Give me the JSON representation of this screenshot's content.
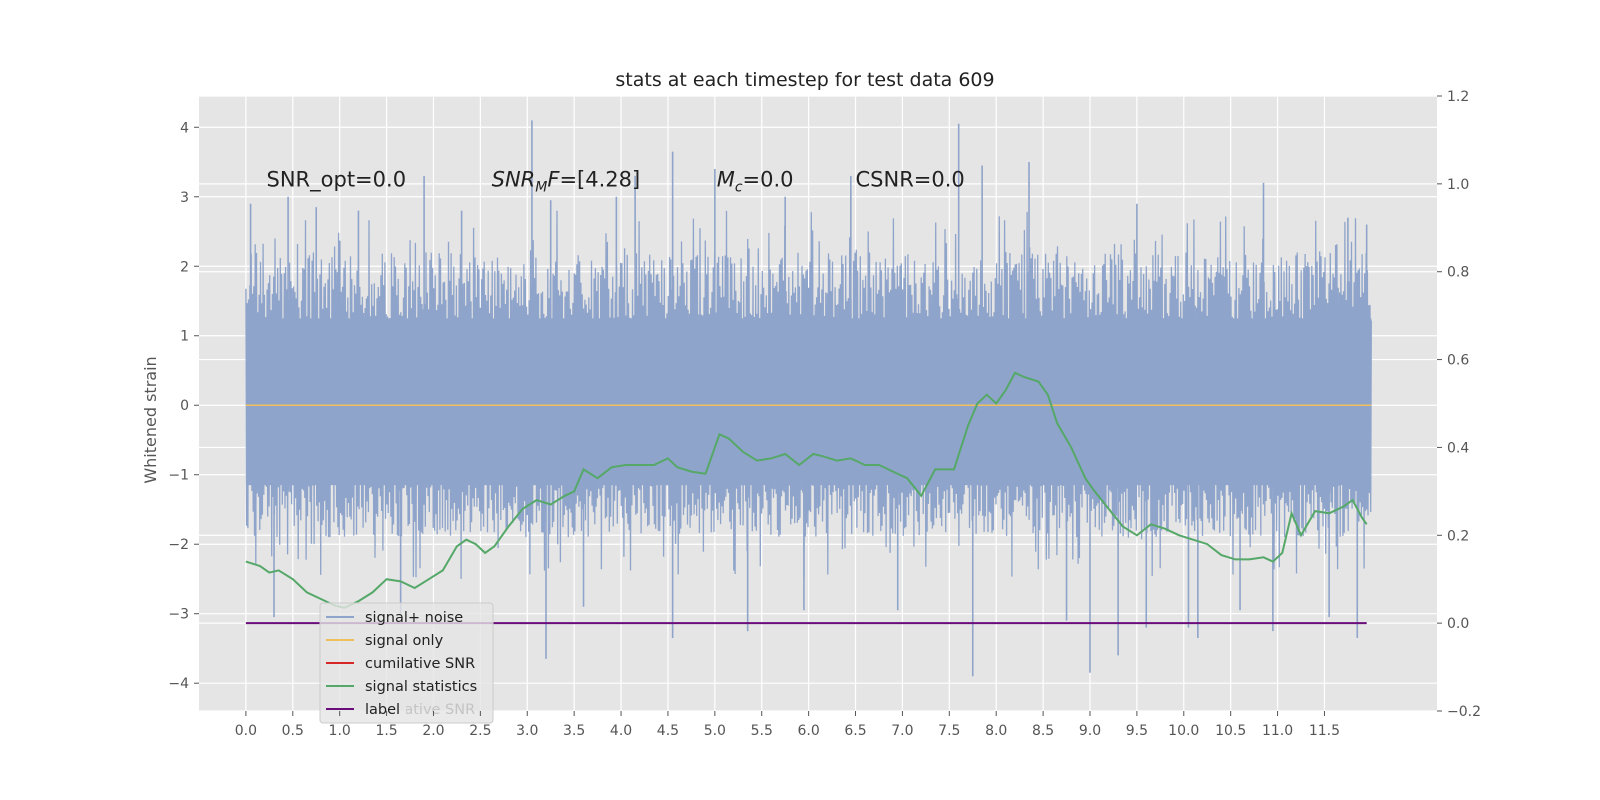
{
  "chart_data": {
    "type": "line",
    "title": "stats at each timestep for test data 609",
    "ylabel": "Whitened strain",
    "xlim": [
      -0.5,
      12.7
    ],
    "ylim": [
      -4.4,
      4.45
    ],
    "y2lim": [
      -0.2,
      1.2
    ],
    "grid": true,
    "legend_position": "lower-left",
    "x_ticks": [
      "0.0",
      "0.5",
      "1.0",
      "1.5",
      "2.0",
      "2.5",
      "3.0",
      "3.5",
      "4.0",
      "4.5",
      "5.0",
      "5.5",
      "6.0",
      "6.5",
      "7.0",
      "7.5",
      "8.0",
      "8.5",
      "9.0",
      "9.5",
      "10.0",
      "10.5",
      "11.0",
      "11.5"
    ],
    "y_ticks": [
      "4",
      "3",
      "2",
      "1",
      "0",
      "−1",
      "−2",
      "−3",
      "−4"
    ],
    "y2_ticks": [
      "1.2",
      "1.0",
      "0.8",
      "0.6",
      "0.4",
      "0.2",
      "0.0",
      "−0.2"
    ],
    "annotations": [
      {
        "id": "snr_opt",
        "text": "SNR_opt=0.0"
      },
      {
        "id": "snr_mf",
        "base": "SNR",
        "sub": "M",
        "rest": "F=[4.28]"
      },
      {
        "id": "mc",
        "base": "M",
        "sub": "c",
        "rest": "=0.0"
      },
      {
        "id": "csnr",
        "text": "CSNR=0.0"
      }
    ],
    "legend": [
      {
        "label": "signal+ noise",
        "color": "#8fa4ca"
      },
      {
        "label": "signal only",
        "color": "#f0c15a"
      },
      {
        "label": "cumilative SNR",
        "color": "#d62728"
      },
      {
        "label": "signal statistics",
        "color": "#55a868"
      },
      {
        "label": "label",
        "color": "#6a0d7a"
      }
    ],
    "occluded_legend_label": "cumilative SNR",
    "series": [
      {
        "name": "signal+ noise",
        "axis": "left",
        "color": "#8fa4ca",
        "x_range": [
          0.0,
          12.0
        ],
        "typical_envelope": [
          -1.9,
          2.2
        ],
        "spike_peaks": [
          {
            "x": 0.05,
            "y": 2.9
          },
          {
            "x": 0.45,
            "y": 3.0
          },
          {
            "x": 0.75,
            "y": 2.85
          },
          {
            "x": 1.2,
            "y": 2.8
          },
          {
            "x": 1.9,
            "y": 3.3
          },
          {
            "x": 2.3,
            "y": 2.8
          },
          {
            "x": 3.05,
            "y": 4.1
          },
          {
            "x": 3.25,
            "y": 2.95
          },
          {
            "x": 3.95,
            "y": 3.0
          },
          {
            "x": 4.15,
            "y": 3.3
          },
          {
            "x": 4.55,
            "y": 3.65
          },
          {
            "x": 5.0,
            "y": 3.4
          },
          {
            "x": 5.75,
            "y": 3.0
          },
          {
            "x": 6.45,
            "y": 3.3
          },
          {
            "x": 7.6,
            "y": 4.05
          },
          {
            "x": 7.85,
            "y": 3.45
          },
          {
            "x": 8.35,
            "y": 3.5
          },
          {
            "x": 9.5,
            "y": 2.9
          },
          {
            "x": 10.85,
            "y": 3.2
          },
          {
            "x": 11.75,
            "y": 2.7
          },
          {
            "x": 11.95,
            "y": 2.6
          }
        ],
        "spike_troughs": [
          {
            "x": 0.3,
            "y": -3.05
          },
          {
            "x": 1.65,
            "y": -3.0
          },
          {
            "x": 3.2,
            "y": -3.65
          },
          {
            "x": 3.6,
            "y": -2.9
          },
          {
            "x": 4.55,
            "y": -3.35
          },
          {
            "x": 5.35,
            "y": -3.25
          },
          {
            "x": 5.95,
            "y": -2.95
          },
          {
            "x": 6.95,
            "y": -2.95
          },
          {
            "x": 7.75,
            "y": -3.9
          },
          {
            "x": 8.75,
            "y": -3.1
          },
          {
            "x": 9.0,
            "y": -3.85
          },
          {
            "x": 9.3,
            "y": -3.6
          },
          {
            "x": 9.6,
            "y": -3.2
          },
          {
            "x": 10.05,
            "y": -3.2
          },
          {
            "x": 10.15,
            "y": -3.35
          },
          {
            "x": 10.6,
            "y": -2.95
          },
          {
            "x": 10.95,
            "y": -3.25
          },
          {
            "x": 11.55,
            "y": -3.05
          },
          {
            "x": 11.85,
            "y": -3.35
          }
        ]
      },
      {
        "name": "signal only",
        "axis": "left",
        "color": "#f0c15a",
        "x": [
          0.0,
          12.0
        ],
        "y": [
          0.0,
          0.0
        ]
      },
      {
        "name": "signal statistics",
        "axis": "right",
        "color": "#55a868",
        "x": [
          0.0,
          0.15,
          0.25,
          0.35,
          0.5,
          0.65,
          0.8,
          0.95,
          1.05,
          1.2,
          1.35,
          1.5,
          1.65,
          1.8,
          1.95,
          2.1,
          2.25,
          2.35,
          2.45,
          2.55,
          2.65,
          2.8,
          2.95,
          3.1,
          3.25,
          3.4,
          3.5,
          3.6,
          3.75,
          3.9,
          4.05,
          4.2,
          4.35,
          4.5,
          4.6,
          4.75,
          4.9,
          5.05,
          5.15,
          5.3,
          5.45,
          5.6,
          5.75,
          5.9,
          6.05,
          6.15,
          6.3,
          6.45,
          6.6,
          6.75,
          6.9,
          7.05,
          7.2,
          7.35,
          7.55,
          7.7,
          7.8,
          7.9,
          8.0,
          8.1,
          8.2,
          8.3,
          8.45,
          8.55,
          8.65,
          8.8,
          8.95,
          9.05,
          9.2,
          9.35,
          9.5,
          9.65,
          9.8,
          9.95,
          10.1,
          10.25,
          10.4,
          10.55,
          10.7,
          10.85,
          10.95,
          11.05,
          11.15,
          11.25,
          11.4,
          11.55,
          11.7,
          11.8,
          11.9,
          11.95
        ],
        "y": [
          0.14,
          0.13,
          0.115,
          0.12,
          0.1,
          0.07,
          0.055,
          0.04,
          0.035,
          0.05,
          0.07,
          0.1,
          0.095,
          0.08,
          0.1,
          0.12,
          0.175,
          0.19,
          0.18,
          0.16,
          0.175,
          0.22,
          0.26,
          0.28,
          0.27,
          0.29,
          0.3,
          0.35,
          0.33,
          0.355,
          0.36,
          0.36,
          0.36,
          0.375,
          0.355,
          0.345,
          0.34,
          0.43,
          0.42,
          0.39,
          0.37,
          0.375,
          0.385,
          0.36,
          0.385,
          0.38,
          0.37,
          0.375,
          0.36,
          0.36,
          0.345,
          0.33,
          0.29,
          0.35,
          0.35,
          0.45,
          0.5,
          0.52,
          0.5,
          0.53,
          0.57,
          0.56,
          0.55,
          0.52,
          0.455,
          0.4,
          0.33,
          0.3,
          0.26,
          0.22,
          0.2,
          0.225,
          0.215,
          0.2,
          0.19,
          0.18,
          0.155,
          0.145,
          0.145,
          0.15,
          0.14,
          0.16,
          0.25,
          0.2,
          0.255,
          0.25,
          0.265,
          0.28,
          0.24,
          0.225
        ]
      },
      {
        "name": "label",
        "axis": "right",
        "color": "#6a0d7a",
        "x": [
          0.0,
          11.95
        ],
        "y": [
          0.0,
          0.0
        ]
      }
    ]
  }
}
